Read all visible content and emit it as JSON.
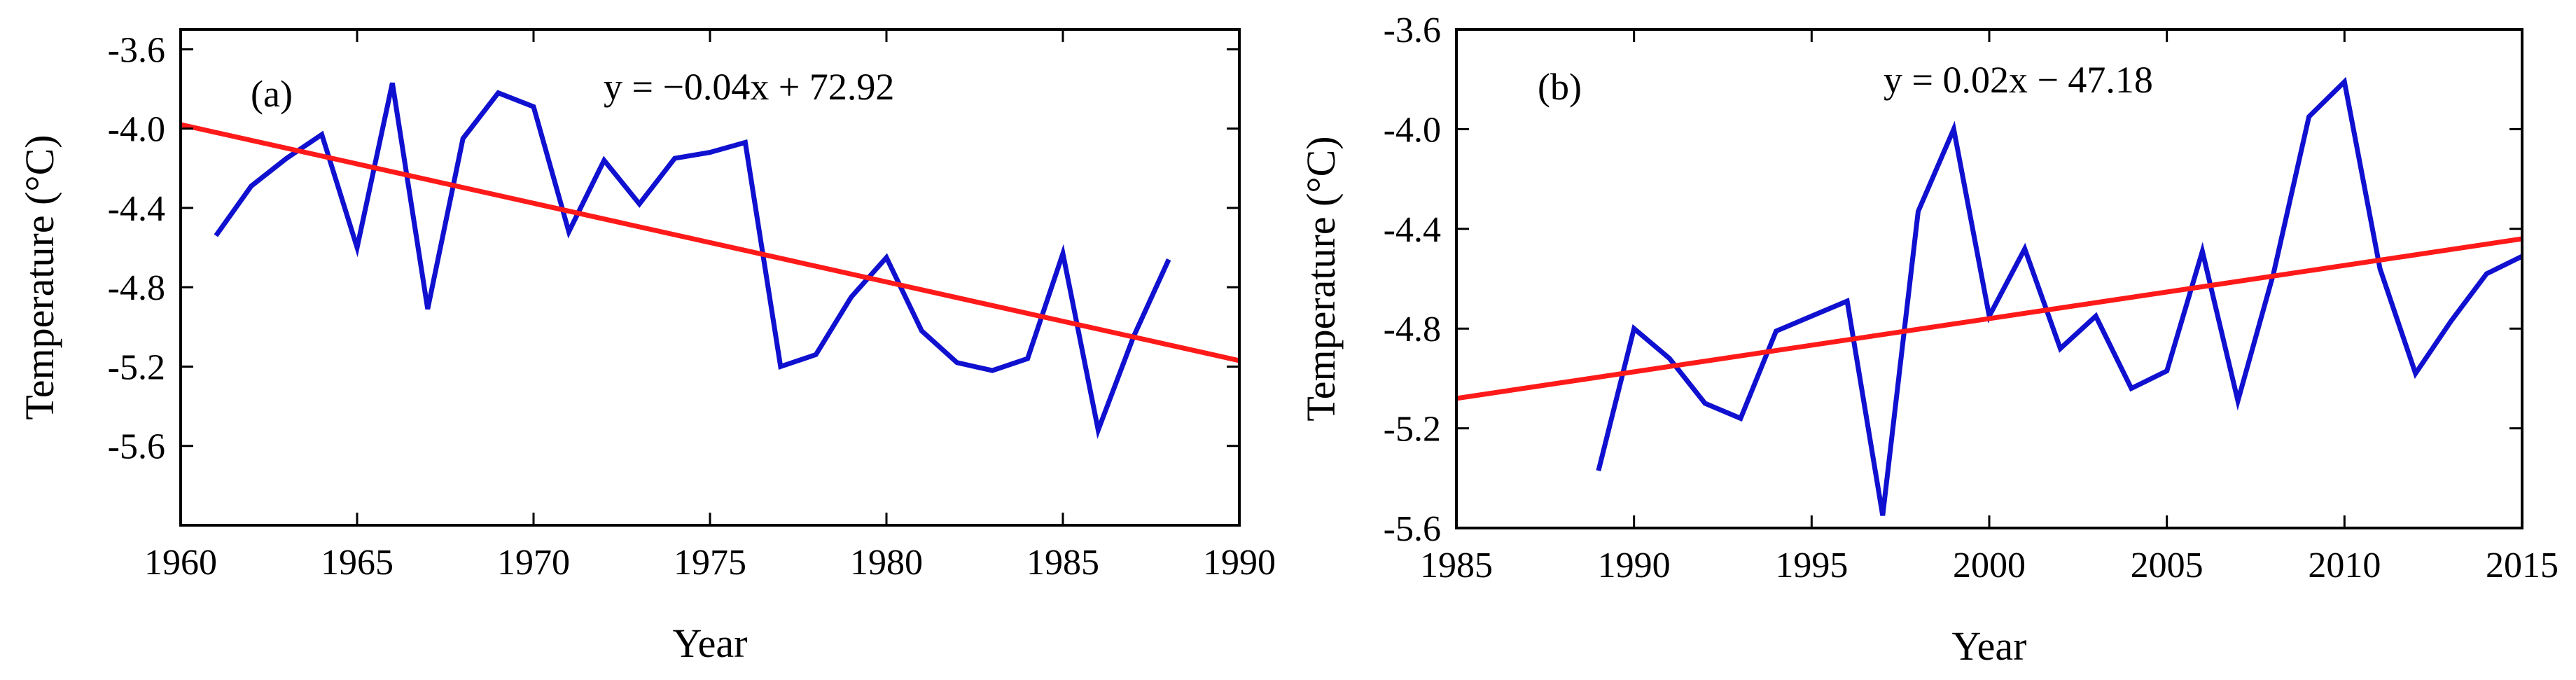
{
  "chart_data": [
    {
      "type": "line",
      "panel_label": "(a)",
      "equation": "y = −0.04x + 72.92",
      "xlabel": "Year",
      "ylabel": "Temperature (°C)",
      "xlim": [
        1960,
        1990
      ],
      "ylim": [
        -6.0,
        -3.5
      ],
      "x_ticks": [
        1960,
        1965,
        1970,
        1975,
        1980,
        1985,
        1990
      ],
      "y_ticks": [
        -3.6,
        -4.0,
        -4.4,
        -4.8,
        -5.2,
        -5.6
      ],
      "series": [
        {
          "name": "Temperature",
          "color": "#1010d0",
          "x": [
            1961,
            1962,
            1963,
            1964,
            1965,
            1966,
            1967,
            1968,
            1969,
            1970,
            1971,
            1972,
            1973,
            1974,
            1975,
            1976,
            1977,
            1978,
            1979,
            1980,
            1981,
            1982,
            1983,
            1984,
            1985,
            1986,
            1987,
            1988
          ],
          "values": [
            -4.54,
            -4.29,
            -4.15,
            -4.03,
            -4.6,
            -3.77,
            -4.91,
            -4.05,
            -3.82,
            -3.89,
            -4.52,
            -4.16,
            -4.38,
            -4.15,
            -4.12,
            -4.07,
            -5.2,
            -5.14,
            -4.85,
            -4.65,
            -5.02,
            -5.18,
            -5.22,
            -5.16,
            -4.63,
            -5.52,
            -5.05,
            -4.66
          ]
        },
        {
          "name": "Trend",
          "color": "#ff1a1a",
          "x": [
            1960,
            1990
          ],
          "values": [
            -3.98,
            -5.17
          ]
        }
      ]
    },
    {
      "type": "line",
      "panel_label": "(b)",
      "equation": "y = 0.02x − 47.18",
      "xlabel": "Year",
      "ylabel": "Temperature (°C)",
      "xlim": [
        1985,
        2015
      ],
      "ylim": [
        -5.6,
        -3.6
      ],
      "x_ticks": [
        1985,
        1990,
        1995,
        2000,
        2005,
        2010,
        2015
      ],
      "y_ticks": [
        -3.6,
        -4.0,
        -4.4,
        -4.8,
        -5.2,
        -5.6
      ],
      "series": [
        {
          "name": "Temperature",
          "color": "#1010d0",
          "x": [
            1989,
            1990,
            1991,
            1992,
            1993,
            1994,
            1995,
            1996,
            1997,
            1998,
            1999,
            2000,
            2001,
            2002,
            2003,
            2004,
            2005,
            2006,
            2007,
            2008,
            2009,
            2010,
            2011,
            2012,
            2013,
            2014,
            2015
          ],
          "values": [
            -5.37,
            -4.8,
            -4.92,
            -5.1,
            -5.16,
            -4.81,
            -4.75,
            -4.69,
            -5.55,
            -4.33,
            -4.0,
            -4.75,
            -4.48,
            -4.88,
            -4.75,
            -5.04,
            -4.97,
            -4.49,
            -5.09,
            -4.58,
            -3.95,
            -3.81,
            -4.56,
            -4.98,
            -4.77,
            -4.58,
            -4.51
          ]
        },
        {
          "name": "Trend",
          "color": "#ff1a1a",
          "x": [
            1985,
            2015
          ],
          "values": [
            -5.08,
            -4.44
          ]
        }
      ]
    }
  ]
}
